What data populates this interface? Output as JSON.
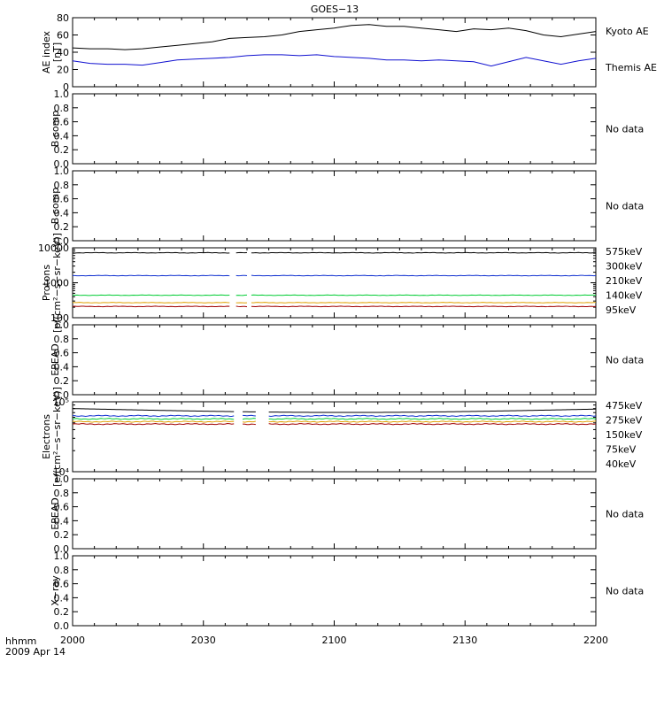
{
  "title": "GOES−13",
  "x_axis": {
    "label_line1": "hhmm",
    "label_line2": "2009 Apr 14",
    "ticks": [
      "2000",
      "2030",
      "2100",
      "2130",
      "2200"
    ],
    "range_minutes": [
      0,
      120
    ]
  },
  "chart_data": [
    {
      "type": "line",
      "ylabel_line1": "AE index",
      "ylabel_line2": "[nT]",
      "ylim": [
        0,
        80
      ],
      "yticks": [
        "0",
        "20",
        "40",
        "60",
        "80"
      ],
      "legend": [
        "Kyoto AE",
        "Themis AE"
      ],
      "series": [
        {
          "name": "Kyoto AE",
          "color": "#1010d0",
          "x": [
            0,
            4,
            8,
            12,
            16,
            20,
            24,
            28,
            32,
            36,
            40,
            44,
            48,
            52,
            56,
            60,
            64,
            68,
            72,
            76,
            80,
            84,
            88,
            92,
            96,
            100,
            104,
            108,
            112,
            116,
            120
          ],
          "y": [
            30,
            27,
            26,
            26,
            25,
            28,
            31,
            32,
            33,
            34,
            36,
            37,
            37,
            36,
            37,
            35,
            34,
            33,
            31,
            31,
            30,
            31,
            30,
            29,
            24,
            29,
            34,
            30,
            26,
            30,
            33
          ]
        },
        {
          "name": "Themis AE",
          "color": "#000000",
          "x": [
            0,
            4,
            8,
            12,
            16,
            20,
            24,
            28,
            32,
            36,
            40,
            44,
            48,
            52,
            56,
            60,
            64,
            68,
            72,
            76,
            80,
            84,
            88,
            92,
            96,
            100,
            104,
            108,
            112,
            116,
            120
          ],
          "y": [
            45,
            44,
            44,
            43,
            44,
            46,
            48,
            50,
            52,
            56,
            57,
            58,
            60,
            64,
            66,
            68,
            71,
            72,
            70,
            70,
            68,
            66,
            64,
            67,
            66,
            68,
            65,
            60,
            58,
            61,
            64
          ]
        }
      ]
    },
    {
      "type": "line",
      "ylabel": "B comp",
      "ylim": [
        0,
        1
      ],
      "yticks": [
        "0.0",
        "0.2",
        "0.4",
        "0.6",
        "0.8",
        "1.0"
      ],
      "status": "No data"
    },
    {
      "type": "line",
      "ylabel": "B comp",
      "ylim": [
        0,
        1
      ],
      "yticks": [
        "0.0",
        "0.2",
        "0.4",
        "0.6",
        "0.8",
        "1.0"
      ],
      "status": "No data"
    },
    {
      "type": "line",
      "scale": "log",
      "ylabel_line1": "Protons",
      "ylabel_line2": "[p/(cm²−s−sr−keV)]",
      "ylim": [
        100,
        10000
      ],
      "yticks": [
        "100",
        "1000",
        "10000"
      ],
      "gap_minutes": [
        [
          36,
          37.5
        ],
        [
          40,
          41
        ]
      ],
      "legend": [
        "575keV",
        "300keV",
        "210keV",
        "140keV",
        "95keV"
      ],
      "series": [
        {
          "name": "575keV",
          "color": "#a00000",
          "base": 210
        },
        {
          "name": "300keV",
          "color": "#e0a000",
          "base": 270
        },
        {
          "name": "210keV",
          "color": "#00cc33",
          "base": 440
        },
        {
          "name": "140keV",
          "color": "#1030d0",
          "base": 1600
        },
        {
          "name": "95keV",
          "color": "#000000",
          "base": 7200
        }
      ]
    },
    {
      "type": "line",
      "ylabel": "EPEAD",
      "ylim": [
        0,
        1
      ],
      "yticks": [
        "0.0",
        "0.2",
        "0.4",
        "0.6",
        "0.8",
        "1.0"
      ],
      "status": "No data"
    },
    {
      "type": "line",
      "scale": "log",
      "ylabel_line1": "Electrons",
      "ylabel_line2": "[e/(cm²−s−sr−keV)]",
      "ylim": [
        10000,
        100000
      ],
      "yticks": [
        "10⁴",
        "10⁵"
      ],
      "gap_minutes": [
        [
          37,
          39
        ],
        [
          42,
          45
        ]
      ],
      "legend": [
        "475keV",
        "275keV",
        "150keV",
        "75keV",
        "40keV"
      ],
      "series": [
        {
          "name": "475keV",
          "color": "#a00000",
          "base": 48000
        },
        {
          "name": "275keV",
          "color": "#e0a000",
          "base": 52000
        },
        {
          "name": "150keV",
          "color": "#00cc33",
          "base": 57000
        },
        {
          "name": "75keV",
          "color": "#1030d0",
          "base": 63000
        },
        {
          "name": "40keV",
          "color": "#000000",
          "base": 80000
        }
      ]
    },
    {
      "type": "line",
      "ylabel": "EPEAD",
      "ylim": [
        0,
        1
      ],
      "yticks": [
        "0.0",
        "0.2",
        "0.4",
        "0.6",
        "0.8",
        "1.0"
      ],
      "status": "No data"
    },
    {
      "type": "line",
      "ylabel": "X−ray",
      "ylim": [
        0,
        1
      ],
      "yticks": [
        "0.0",
        "0.2",
        "0.4",
        "0.6",
        "0.8",
        "1.0"
      ],
      "status": "No data"
    }
  ]
}
